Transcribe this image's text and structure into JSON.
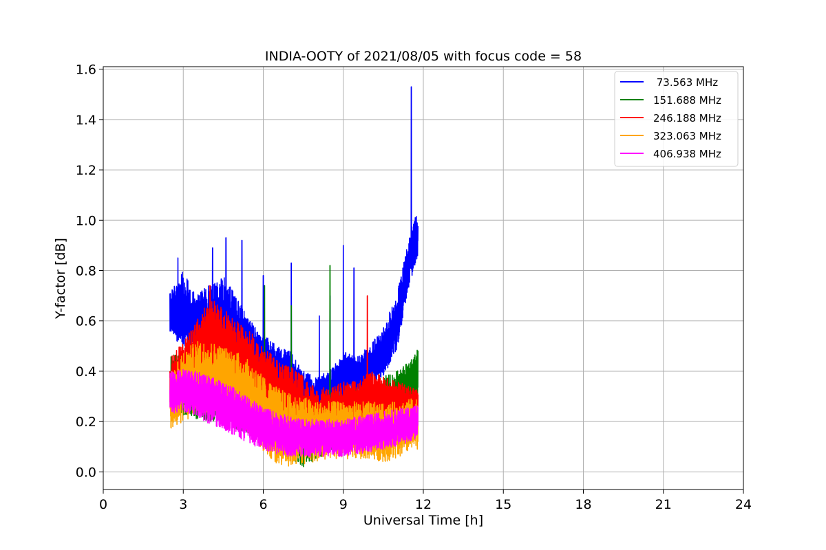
{
  "chart_data": {
    "type": "line",
    "title": "INDIA-OOTY of 2021/08/05 with focus code = 58",
    "xlabel": "Universal Time [h]",
    "ylabel": "Y-factor [dB]",
    "xlim": [
      0,
      24
    ],
    "ylim": [
      -0.07,
      1.61
    ],
    "xticks": [
      0,
      3,
      6,
      9,
      12,
      15,
      18,
      21,
      24
    ],
    "yticks": [
      0.0,
      0.2,
      0.4,
      0.6,
      0.8,
      1.0,
      1.2,
      1.4,
      1.6
    ],
    "xtick_labels": [
      "0",
      "3",
      "6",
      "9",
      "12",
      "15",
      "18",
      "21",
      "24"
    ],
    "ytick_labels": [
      "0.0",
      "0.2",
      "0.4",
      "0.6",
      "0.8",
      "1.0",
      "1.2",
      "1.4",
      "1.6"
    ],
    "grid": true,
    "legend_position": "top-right",
    "x_range_of_data": [
      2.5,
      11.8
    ],
    "series": [
      {
        "name": " 73.563 MHz",
        "color": "#0000ff",
        "x": [
          2.5,
          3.0,
          3.5,
          4.0,
          4.5,
          5.0,
          5.5,
          6.0,
          6.5,
          7.0,
          7.5,
          8.0,
          8.5,
          9.0,
          9.5,
          10.0,
          10.5,
          11.0,
          11.3,
          11.5,
          11.8
        ],
        "low": [
          0.54,
          0.5,
          0.48,
          0.47,
          0.44,
          0.42,
          0.38,
          0.32,
          0.33,
          0.3,
          0.26,
          0.24,
          0.27,
          0.29,
          0.31,
          0.33,
          0.38,
          0.48,
          0.62,
          0.75,
          0.86
        ],
        "high": [
          0.72,
          0.8,
          0.7,
          0.75,
          0.78,
          0.7,
          0.6,
          0.55,
          0.5,
          0.48,
          0.4,
          0.38,
          0.4,
          0.48,
          0.46,
          0.5,
          0.58,
          0.7,
          0.85,
          0.95,
          1.05
        ],
        "spikes": [
          [
            2.8,
            0.85
          ],
          [
            4.1,
            0.89
          ],
          [
            4.6,
            0.93
          ],
          [
            5.2,
            0.92
          ],
          [
            6.0,
            0.78
          ],
          [
            7.05,
            0.83
          ],
          [
            8.1,
            0.62
          ],
          [
            8.5,
            0.7
          ],
          [
            9.0,
            0.9
          ],
          [
            9.4,
            0.81
          ],
          [
            11.55,
            1.53
          ]
        ]
      },
      {
        "name": "151.688 MHz",
        "color": "#008000",
        "x": [
          2.5,
          3.0,
          3.5,
          4.0,
          4.5,
          5.0,
          5.5,
          6.0,
          6.5,
          7.0,
          7.5,
          8.0,
          8.5,
          9.0,
          9.5,
          10.0,
          10.5,
          11.0,
          11.5,
          11.8
        ],
        "low": [
          0.23,
          0.22,
          0.21,
          0.2,
          0.19,
          0.17,
          0.15,
          0.12,
          0.09,
          0.05,
          0.02,
          0.05,
          0.08,
          0.09,
          0.1,
          0.11,
          0.13,
          0.18,
          0.25,
          0.3
        ],
        "high": [
          0.46,
          0.48,
          0.5,
          0.52,
          0.5,
          0.46,
          0.42,
          0.38,
          0.34,
          0.3,
          0.26,
          0.26,
          0.3,
          0.32,
          0.34,
          0.36,
          0.38,
          0.4,
          0.44,
          0.49
        ],
        "spikes": [
          [
            6.05,
            0.74
          ],
          [
            7.05,
            0.66
          ],
          [
            8.5,
            0.82
          ]
        ]
      },
      {
        "name": "246.188 MHz",
        "color": "#ff0000",
        "x": [
          2.5,
          3.0,
          3.5,
          4.0,
          4.5,
          5.0,
          5.5,
          6.0,
          6.5,
          7.0,
          7.5,
          8.0,
          8.5,
          9.0,
          9.5,
          10.0,
          10.5,
          11.0,
          11.5,
          11.8
        ],
        "low": [
          0.25,
          0.28,
          0.32,
          0.35,
          0.34,
          0.32,
          0.28,
          0.24,
          0.2,
          0.16,
          0.13,
          0.12,
          0.13,
          0.14,
          0.15,
          0.16,
          0.17,
          0.18,
          0.2,
          0.22
        ],
        "high": [
          0.45,
          0.52,
          0.6,
          0.7,
          0.65,
          0.6,
          0.56,
          0.5,
          0.45,
          0.42,
          0.38,
          0.33,
          0.34,
          0.36,
          0.36,
          0.4,
          0.38,
          0.36,
          0.34,
          0.33
        ],
        "spikes": [
          [
            4.0,
            0.74
          ],
          [
            9.9,
            0.7
          ]
        ]
      },
      {
        "name": "323.063 MHz",
        "color": "#ffa500",
        "x": [
          2.5,
          3.0,
          3.5,
          4.0,
          4.5,
          5.0,
          5.5,
          6.0,
          6.5,
          7.0,
          7.5,
          8.0,
          8.5,
          9.0,
          9.5,
          10.0,
          10.5,
          11.0,
          11.5,
          11.8
        ],
        "low": [
          0.17,
          0.19,
          0.22,
          0.24,
          0.22,
          0.2,
          0.15,
          0.08,
          0.03,
          0.02,
          0.03,
          0.04,
          0.05,
          0.05,
          0.05,
          0.05,
          0.04,
          0.05,
          0.08,
          0.09
        ],
        "high": [
          0.4,
          0.48,
          0.52,
          0.52,
          0.5,
          0.48,
          0.44,
          0.38,
          0.34,
          0.31,
          0.3,
          0.28,
          0.28,
          0.28,
          0.28,
          0.28,
          0.27,
          0.28,
          0.29,
          0.3
        ],
        "spikes": []
      },
      {
        "name": "406.938 MHz",
        "color": "#ff00ff",
        "x": [
          2.5,
          3.0,
          3.5,
          4.0,
          4.5,
          5.0,
          5.5,
          6.0,
          6.5,
          7.0,
          7.5,
          8.0,
          8.5,
          9.0,
          9.5,
          10.0,
          10.5,
          11.0,
          11.5,
          11.8
        ],
        "low": [
          0.23,
          0.24,
          0.22,
          0.19,
          0.17,
          0.14,
          0.11,
          0.09,
          0.07,
          0.06,
          0.06,
          0.06,
          0.06,
          0.06,
          0.07,
          0.08,
          0.09,
          0.1,
          0.12,
          0.13
        ],
        "high": [
          0.4,
          0.41,
          0.4,
          0.38,
          0.36,
          0.33,
          0.29,
          0.26,
          0.24,
          0.22,
          0.21,
          0.21,
          0.21,
          0.21,
          0.22,
          0.23,
          0.24,
          0.25,
          0.26,
          0.27
        ],
        "spikes": []
      }
    ]
  }
}
